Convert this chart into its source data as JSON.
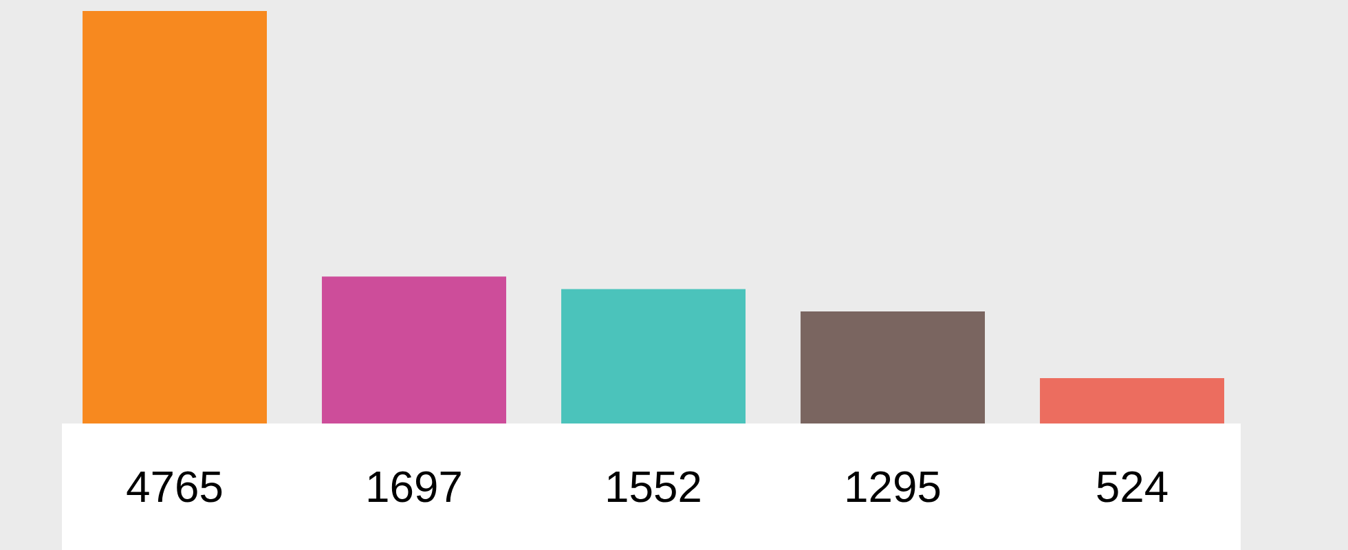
{
  "chart_data": {
    "type": "bar",
    "categories": [
      null,
      null,
      null,
      null,
      null
    ],
    "values": [
      4765,
      1697,
      1552,
      1295,
      524
    ],
    "colors": [
      "#f7891f",
      "#cd4d9a",
      "#4bc3bb",
      "#7a6560",
      "#ec6d5f"
    ],
    "data_labels": true
  }
}
